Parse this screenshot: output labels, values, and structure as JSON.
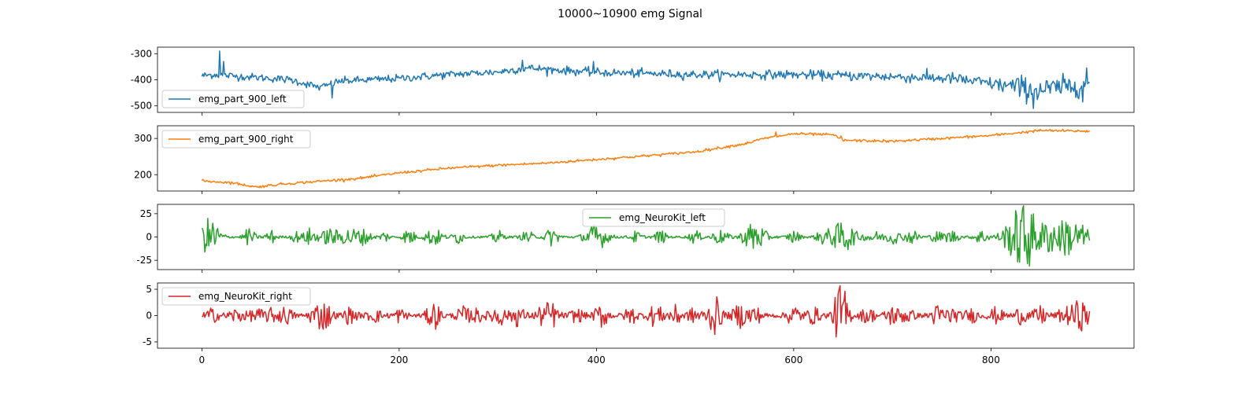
{
  "figure": {
    "title": "10000~10900 emg Signal"
  },
  "chart_data": [
    {
      "type": "line",
      "title": "",
      "xlabel": "",
      "ylabel": "",
      "xlim": [
        -45,
        945
      ],
      "ylim": [
        -525,
        -275
      ],
      "yticks": [
        -300,
        -400,
        -500
      ],
      "xticks": [
        0,
        200,
        400,
        600,
        800
      ],
      "show_xtick_labels": false,
      "grid": false,
      "legend_position": "lower-left",
      "series": [
        {
          "name": "emg_part_900_left",
          "color": "#1f77b4",
          "x_start": 0,
          "x_step": 1,
          "style": "noisy-baseline",
          "keypoints": [
            [
              0,
              -385
            ],
            [
              12,
              -380
            ],
            [
              30,
              -385
            ],
            [
              60,
              -392
            ],
            [
              90,
              -400
            ],
            [
              120,
              -430
            ],
            [
              140,
              -405
            ],
            [
              200,
              -395
            ],
            [
              250,
              -380
            ],
            [
              300,
              -370
            ],
            [
              330,
              -355
            ],
            [
              400,
              -372
            ],
            [
              500,
              -380
            ],
            [
              600,
              -380
            ],
            [
              700,
              -388
            ],
            [
              760,
              -395
            ],
            [
              820,
              -425
            ],
            [
              850,
              -440
            ],
            [
              880,
              -425
            ],
            [
              900,
              -410
            ]
          ],
          "noise": [
            [
              0,
              12
            ],
            [
              120,
              12
            ],
            [
              600,
              14
            ],
            [
              800,
              20
            ],
            [
              830,
              38
            ],
            [
              900,
              35
            ]
          ],
          "spikes": [
            [
              18,
              -290
            ],
            [
              22,
              -330
            ],
            [
              132,
              -470
            ],
            [
              325,
              -325
            ],
            [
              397,
              -330
            ],
            [
              843,
              -510
            ],
            [
              893,
              -485
            ],
            [
              897,
              -355
            ]
          ]
        },
        {
          "name": "emg_part_900_right",
          "color": "#ff7f0e",
          "x_start": 0,
          "x_step": 1,
          "style": "noisy-baseline",
          "keypoints": [
            [
              0,
              183
            ],
            [
              30,
              178
            ],
            [
              55,
              166
            ],
            [
              80,
              174
            ],
            [
              120,
              182
            ],
            [
              160,
              190
            ],
            [
              200,
              205
            ],
            [
              250,
              218
            ],
            [
              300,
              226
            ],
            [
              350,
              232
            ],
            [
              400,
              242
            ],
            [
              450,
              252
            ],
            [
              500,
              263
            ],
            [
              550,
              285
            ],
            [
              570,
              300
            ],
            [
              600,
              313
            ],
            [
              640,
              310
            ],
            [
              650,
              295
            ],
            [
              700,
              292
            ],
            [
              750,
              300
            ],
            [
              800,
              308
            ],
            [
              850,
              322
            ],
            [
              900,
              320
            ]
          ],
          "noise": [
            [
              0,
              3
            ],
            [
              900,
              3
            ]
          ],
          "spikes": [
            [
              582,
              318
            ],
            [
              648,
              307
            ]
          ]
        },
        {
          "name": "emg_NeuroKit_left",
          "color": "#2ca02c",
          "x_start": 0,
          "x_step": 1,
          "style": "bursts",
          "baseline": 0,
          "base_amplitude": 1,
          "bursts": [
            [
              8,
              18,
              7
            ],
            [
              48,
              8,
              4
            ],
            [
              70,
              6,
              4
            ],
            [
              95,
              5,
              3
            ],
            [
              110,
              8,
              5
            ],
            [
              130,
              8,
              6
            ],
            [
              150,
              8,
              7
            ],
            [
              165,
              6,
              5
            ],
            [
              185,
              5,
              3
            ],
            [
              210,
              8,
              4
            ],
            [
              235,
              8,
              6
            ],
            [
              260,
              6,
              4
            ],
            [
              300,
              6,
              4
            ],
            [
              330,
              6,
              4
            ],
            [
              355,
              8,
              5
            ],
            [
              400,
              12,
              8
            ],
            [
              440,
              5,
              4
            ],
            [
              465,
              6,
              4
            ],
            [
              500,
              6,
              4
            ],
            [
              525,
              6,
              6
            ],
            [
              560,
              14,
              8
            ],
            [
              600,
              6,
              4
            ],
            [
              630,
              6,
              5
            ],
            [
              650,
              14,
              9
            ],
            [
              680,
              6,
              5
            ],
            [
              700,
              6,
              6
            ],
            [
              720,
              6,
              5
            ],
            [
              745,
              5,
              4
            ],
            [
              760,
              6,
              5
            ],
            [
              790,
              6,
              5
            ],
            [
              820,
              10,
              8
            ],
            [
              835,
              30,
              9
            ],
            [
              860,
              14,
              8
            ],
            [
              880,
              18,
              8
            ],
            [
              895,
              8,
              3
            ]
          ]
        },
        {
          "name": "emg_NeuroKit_right",
          "color": "#d62728",
          "x_start": 0,
          "x_step": 1,
          "style": "bursts",
          "baseline": 0,
          "base_amplitude": 0.35,
          "bursts": [
            [
              10,
              1,
              5
            ],
            [
              35,
              1,
              6
            ],
            [
              55,
              1,
              5
            ],
            [
              70,
              1,
              5
            ],
            [
              85,
              1.3,
              5
            ],
            [
              115,
              1.4,
              5
            ],
            [
              125,
              2,
              5
            ],
            [
              150,
              1.2,
              5
            ],
            [
              175,
              1,
              5
            ],
            [
              200,
              1,
              5
            ],
            [
              235,
              2.1,
              5
            ],
            [
              265,
              1.3,
              5
            ],
            [
              280,
              1,
              5
            ],
            [
              300,
              1.8,
              5
            ],
            [
              320,
              1.6,
              5
            ],
            [
              345,
              1.4,
              5
            ],
            [
              355,
              1.8,
              5
            ],
            [
              380,
              1,
              5
            ],
            [
              405,
              1.8,
              5
            ],
            [
              435,
              1.2,
              5
            ],
            [
              460,
              1.8,
              5
            ],
            [
              480,
              1.5,
              5
            ],
            [
              500,
              1.2,
              5
            ],
            [
              520,
              3,
              5
            ],
            [
              545,
              1.8,
              5
            ],
            [
              560,
              1.5,
              5
            ],
            [
              600,
              1.6,
              5
            ],
            [
              620,
              1.2,
              5
            ],
            [
              648,
              5.5,
              5
            ],
            [
              675,
              1.2,
              5
            ],
            [
              700,
              1.5,
              5
            ],
            [
              715,
              1.1,
              5
            ],
            [
              745,
              1.5,
              5
            ],
            [
              760,
              1.2,
              5
            ],
            [
              780,
              1,
              5
            ],
            [
              805,
              1.2,
              5
            ],
            [
              830,
              1.2,
              5
            ],
            [
              850,
              1.4,
              5
            ],
            [
              875,
              1.3,
              5
            ],
            [
              888,
              2,
              5
            ],
            [
              897,
              1.2,
              5
            ]
          ]
        }
      ]
    },
    {
      "type": "line",
      "title": "",
      "xlabel": "",
      "ylabel": "",
      "xlim": [
        -45,
        945
      ],
      "ylim": [
        155,
        335
      ],
      "yticks": [
        200,
        300
      ],
      "xticks": [
        0,
        200,
        400,
        600,
        800
      ],
      "show_xtick_labels": false,
      "grid": false,
      "legend_position": "upper-left",
      "series_ref": "emg_part_900_right"
    },
    {
      "type": "line",
      "title": "",
      "xlabel": "",
      "ylabel": "",
      "xlim": [
        -45,
        945
      ],
      "ylim": [
        -35,
        35
      ],
      "yticks": [
        25,
        0,
        -25
      ],
      "xticks": [
        0,
        200,
        400,
        600,
        800
      ],
      "show_xtick_labels": false,
      "grid": false,
      "legend_position": "upper-center",
      "series_ref": "emg_NeuroKit_left"
    },
    {
      "type": "line",
      "title": "",
      "xlabel": "",
      "ylabel": "",
      "xlim": [
        -45,
        945
      ],
      "ylim": [
        -6.2,
        6.2
      ],
      "yticks": [
        5,
        0,
        -5
      ],
      "xticks": [
        0,
        200,
        400,
        600,
        800
      ],
      "show_xtick_labels": true,
      "grid": false,
      "legend_position": "upper-left",
      "series_ref": "emg_NeuroKit_right"
    }
  ]
}
